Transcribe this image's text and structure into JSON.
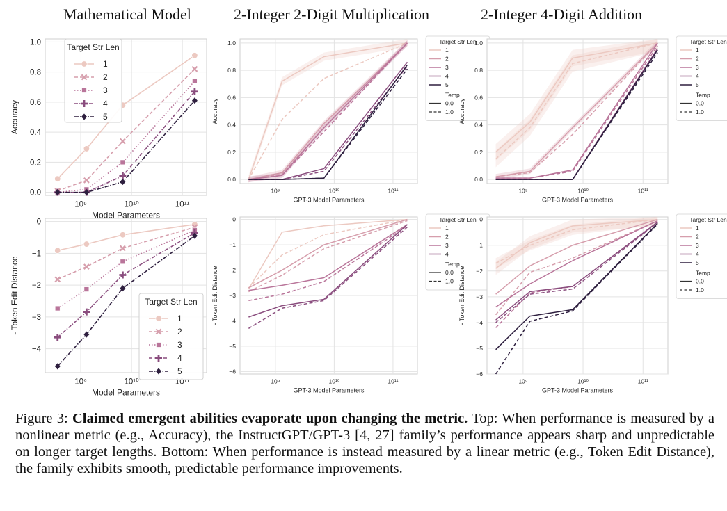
{
  "figure": {
    "column_titles": [
      "Mathematical Model",
      "2-Integer 2-Digit Multiplication",
      "2-Integer 4-Digit Addition"
    ],
    "caption": {
      "label": "Figure 3:",
      "bold": "Claimed emergent abilities evaporate upon changing the metric.",
      "rest": "Top: When performance is measured by a nonlinear metric (e.g., Accuracy), the InstructGPT/GPT-3 [4, 27] family’s performance appears sharp and unpredictable on longer target lengths. Bottom: When performance is instead measured by a linear metric (e.g., Token Edit Distance), the family exhibits smooth, predictable performance improvements."
    }
  },
  "colors": {
    "1": "#ecc9c1",
    "2": "#d69eac",
    "3": "#b9759a",
    "4": "#8a4d7e",
    "5": "#2e1f3f"
  },
  "chart_data": [
    {
      "id": "math-acc",
      "type": "line",
      "xlabel": "Model Parameters",
      "ylabel": "Accuracy",
      "xscale": "log",
      "xlim": [
        200000000.0,
        300000000000.0
      ],
      "ylim": [
        -0.02,
        1.02
      ],
      "yticks": [
        0.0,
        0.2,
        0.4,
        0.6,
        0.8,
        1.0
      ],
      "ytick_labels": [
        "0.0",
        "0.2",
        "0.4",
        "0.6",
        "0.8",
        "1.0"
      ],
      "xticks": [
        1000000000.0,
        10000000000.0,
        100000000000.0
      ],
      "xtick_labels": [
        "10⁹",
        "10¹⁰",
        "10¹¹"
      ],
      "x": [
        350000000.0,
        1300000000.0,
        6700000000.0,
        175000000000.0
      ],
      "legend": {
        "title": "Target Str Len",
        "position": "top-left",
        "entries": [
          "1",
          "2",
          "3",
          "4",
          "5"
        ]
      },
      "series": [
        {
          "name": "1",
          "values": [
            0.09,
            0.29,
            0.58,
            0.91
          ]
        },
        {
          "name": "2",
          "values": [
            0.01,
            0.08,
            0.34,
            0.82
          ]
        },
        {
          "name": "3",
          "values": [
            0.0,
            0.02,
            0.2,
            0.74
          ]
        },
        {
          "name": "4",
          "values": [
            0.0,
            0.0,
            0.11,
            0.67
          ]
        },
        {
          "name": "5",
          "values": [
            0.0,
            0.0,
            0.07,
            0.61
          ]
        }
      ]
    },
    {
      "id": "mult-acc",
      "type": "line",
      "xlabel": "GPT-3 Model Parameters",
      "ylabel": "Accuracy",
      "xscale": "log",
      "xlim": [
        250000000.0,
        260000000000.0
      ],
      "ylim": [
        -0.03,
        1.03
      ],
      "yticks": [
        0.0,
        0.2,
        0.4,
        0.6,
        0.8,
        1.0
      ],
      "ytick_labels": [
        "0.0",
        "0.2",
        "0.4",
        "0.6",
        "0.8",
        "1.0"
      ],
      "xticks": [
        1000000000.0,
        10000000000.0,
        100000000000.0
      ],
      "xtick_labels": [
        "10⁹",
        "10¹⁰",
        "10¹¹"
      ],
      "x": [
        350000000.0,
        1300000000.0,
        6700000000.0,
        175000000000.0
      ],
      "legend": {
        "title": "Target Str Len",
        "position": "right",
        "entries": [
          "1",
          "2",
          "3",
          "4",
          "5"
        ],
        "title2": "Temp",
        "entries2": [
          "0.0",
          "1.0"
        ]
      },
      "series": [
        {
          "name": "1",
          "temp": "0.0",
          "values": [
            0.0,
            0.72,
            0.9,
            1.0
          ],
          "band": 0.03
        },
        {
          "name": "1",
          "temp": "1.0",
          "values": [
            0.0,
            0.44,
            0.74,
            1.0
          ]
        },
        {
          "name": "2",
          "temp": "0.0",
          "values": [
            0.0,
            0.05,
            0.41,
            1.0
          ],
          "band": 0.02
        },
        {
          "name": "2",
          "temp": "1.0",
          "values": [
            0.0,
            0.04,
            0.38,
            1.0
          ]
        },
        {
          "name": "3",
          "temp": "0.0",
          "values": [
            0.0,
            0.03,
            0.38,
            1.0
          ],
          "band": 0.02
        },
        {
          "name": "3",
          "temp": "1.0",
          "values": [
            0.0,
            0.03,
            0.35,
            1.0
          ]
        },
        {
          "name": "4",
          "temp": "0.0",
          "values": [
            0.0,
            0.0,
            0.08,
            0.86
          ]
        },
        {
          "name": "4",
          "temp": "1.0",
          "values": [
            0.0,
            0.0,
            0.06,
            0.83
          ]
        },
        {
          "name": "5",
          "temp": "0.0",
          "values": [
            0.0,
            0.0,
            0.01,
            0.84
          ]
        },
        {
          "name": "5",
          "temp": "1.0",
          "values": [
            0.0,
            0.0,
            0.01,
            0.81
          ]
        }
      ]
    },
    {
      "id": "add-acc",
      "type": "line",
      "xlabel": "GPT-3 Model Parameters",
      "ylabel": "Accuracy",
      "xscale": "log",
      "xlim": [
        250000000.0,
        260000000000.0
      ],
      "ylim": [
        -0.03,
        1.03
      ],
      "yticks": [
        0.0,
        0.2,
        0.4,
        0.6,
        0.8,
        1.0
      ],
      "ytick_labels": [
        "0.0",
        "0.2",
        "0.4",
        "0.6",
        "0.8",
        "1.0"
      ],
      "xticks": [
        1000000000.0,
        10000000000.0,
        100000000000.0
      ],
      "xtick_labels": [
        "10⁹",
        "10¹⁰",
        "10¹¹"
      ],
      "x": [
        350000000.0,
        1300000000.0,
        6700000000.0,
        175000000000.0
      ],
      "legend": {
        "title": "Target Str Len",
        "position": "right",
        "entries": [
          "1",
          "2",
          "3",
          "4",
          "5"
        ],
        "title2": "Temp",
        "entries2": [
          "0.0",
          "1.0"
        ]
      },
      "series": [
        {
          "name": "1",
          "temp": "0.0",
          "values": [
            0.2,
            0.42,
            0.89,
            1.0
          ],
          "band": 0.06
        },
        {
          "name": "1",
          "temp": "1.0",
          "values": [
            0.15,
            0.38,
            0.85,
            1.0
          ],
          "band": 0.06
        },
        {
          "name": "2",
          "temp": "0.0",
          "values": [
            0.02,
            0.06,
            0.38,
            1.0
          ],
          "band": 0.02
        },
        {
          "name": "2",
          "temp": "1.0",
          "values": [
            0.02,
            0.05,
            0.33,
            1.0
          ]
        },
        {
          "name": "3",
          "temp": "0.0",
          "values": [
            0.01,
            0.01,
            0.07,
            1.0
          ]
        },
        {
          "name": "3",
          "temp": "1.0",
          "values": [
            0.01,
            0.01,
            0.06,
            0.98
          ]
        },
        {
          "name": "4",
          "temp": "0.0",
          "values": [
            0.0,
            0.0,
            0.0,
            0.96
          ]
        },
        {
          "name": "4",
          "temp": "1.0",
          "values": [
            0.0,
            0.0,
            0.0,
            0.95
          ]
        },
        {
          "name": "5",
          "temp": "0.0",
          "values": [
            0.0,
            0.0,
            0.0,
            0.95
          ]
        },
        {
          "name": "5",
          "temp": "1.0",
          "values": [
            0.0,
            0.0,
            0.0,
            0.93
          ]
        }
      ]
    },
    {
      "id": "math-ted",
      "type": "line",
      "xlabel": "Model Parameters",
      "ylabel": "- Token Edit Distance",
      "xscale": "log",
      "xlim": [
        200000000.0,
        300000000000.0
      ],
      "ylim": [
        -4.75,
        0.1
      ],
      "yticks": [
        0,
        -1,
        -2,
        -3,
        -4
      ],
      "ytick_labels": [
        "0",
        "−1",
        "−2",
        "−3",
        "−4"
      ],
      "xticks": [
        1000000000.0,
        10000000000.0,
        100000000000.0
      ],
      "xtick_labels": [
        "10⁹",
        "10¹⁰",
        "10¹¹"
      ],
      "x": [
        350000000.0,
        1300000000.0,
        6700000000.0,
        175000000000.0
      ],
      "legend": {
        "title": "Target Str Len",
        "position": "bottom-right",
        "entries": [
          "1",
          "2",
          "3",
          "4",
          "5"
        ]
      },
      "series": [
        {
          "name": "1",
          "values": [
            -0.91,
            -0.71,
            -0.42,
            -0.09
          ]
        },
        {
          "name": "2",
          "values": [
            -1.82,
            -1.42,
            -0.84,
            -0.18
          ]
        },
        {
          "name": "3",
          "values": [
            -2.73,
            -2.13,
            -1.26,
            -0.27
          ]
        },
        {
          "name": "4",
          "values": [
            -3.64,
            -2.84,
            -1.68,
            -0.36
          ]
        },
        {
          "name": "5",
          "values": [
            -4.55,
            -3.55,
            -2.1,
            -0.45
          ]
        }
      ]
    },
    {
      "id": "mult-ted",
      "type": "line",
      "xlabel": "GPT-3 Model Parameters",
      "ylabel": "- Token Edit Distance",
      "xscale": "log",
      "xlim": [
        250000000.0,
        260000000000.0
      ],
      "ylim": [
        -6.1,
        0.1
      ],
      "yticks": [
        0,
        -1,
        -2,
        -3,
        -4,
        -5,
        -6
      ],
      "ytick_labels": [
        "0",
        "−1",
        "−2",
        "−3",
        "−4",
        "−5",
        "−6"
      ],
      "xticks": [
        1000000000.0,
        10000000000.0,
        100000000000.0
      ],
      "xtick_labels": [
        "10⁹",
        "10¹⁰",
        "10¹¹"
      ],
      "x": [
        350000000.0,
        1300000000.0,
        6700000000.0,
        175000000000.0
      ],
      "legend": {
        "title": "Target Str Len",
        "position": "right",
        "entries": [
          "1",
          "2",
          "3",
          "4"
        ],
        "title2": "Temp",
        "entries2": [
          "0.0",
          "1.0"
        ]
      },
      "series": [
        {
          "name": "1",
          "temp": "0.0",
          "values": [
            -2.75,
            -0.5,
            -0.25,
            0.0
          ]
        },
        {
          "name": "1",
          "temp": "1.0",
          "values": [
            -2.7,
            -1.4,
            -0.6,
            0.0
          ]
        },
        {
          "name": "2",
          "temp": "0.0",
          "values": [
            -2.7,
            -2.0,
            -1.0,
            0.0
          ]
        },
        {
          "name": "2",
          "temp": "1.0",
          "values": [
            -2.85,
            -2.2,
            -1.15,
            -0.05
          ]
        },
        {
          "name": "3",
          "temp": "0.0",
          "values": [
            -2.8,
            -2.6,
            -2.3,
            -0.2
          ]
        },
        {
          "name": "3",
          "temp": "1.0",
          "values": [
            -3.2,
            -2.95,
            -2.45,
            -0.25
          ]
        },
        {
          "name": "4",
          "temp": "0.0",
          "values": [
            -3.85,
            -3.4,
            -3.15,
            -0.2
          ]
        },
        {
          "name": "4",
          "temp": "1.0",
          "values": [
            -4.3,
            -3.5,
            -3.2,
            -0.3
          ]
        }
      ]
    },
    {
      "id": "add-ted",
      "type": "line",
      "xlabel": "GPT-3 Model Parameters",
      "ylabel": "- Token Edit Distance",
      "xscale": "log",
      "xlim": [
        250000000.0,
        260000000000.0
      ],
      "ylim": [
        -6.0,
        0.1
      ],
      "yticks": [
        0,
        -1,
        -2,
        -3,
        -4,
        -5,
        -6
      ],
      "ytick_labels": [
        "0",
        "−1",
        "−2",
        "−3",
        "−4",
        "−5",
        "−6"
      ],
      "xticks": [
        1000000000.0,
        10000000000.0,
        100000000000.0
      ],
      "xtick_labels": [
        "10⁹",
        "10¹⁰",
        "10¹¹"
      ],
      "x": [
        350000000.0,
        1300000000.0,
        6700000000.0,
        175000000000.0
      ],
      "legend": {
        "title": "Target Str Len",
        "position": "right",
        "entries": [
          "1",
          "2",
          "3",
          "4",
          "5"
        ],
        "title2": "Temp",
        "entries2": [
          "0.0",
          "1.0"
        ]
      },
      "series": [
        {
          "name": "1",
          "temp": "0.0",
          "values": [
            -1.9,
            -0.9,
            -0.25,
            0.0
          ],
          "band": 0.25
        },
        {
          "name": "1",
          "temp": "1.0",
          "values": [
            -1.7,
            -1.0,
            -0.4,
            0.0
          ],
          "band": 0.2
        },
        {
          "name": "2",
          "temp": "0.0",
          "values": [
            -2.9,
            -1.8,
            -1.0,
            0.0
          ]
        },
        {
          "name": "2",
          "temp": "1.0",
          "values": [
            -3.7,
            -2.05,
            -1.5,
            -0.05
          ]
        },
        {
          "name": "3",
          "temp": "0.0",
          "values": [
            -3.4,
            -2.5,
            -1.6,
            -0.05
          ]
        },
        {
          "name": "3",
          "temp": "1.0",
          "values": [
            -4.2,
            -2.85,
            -2.6,
            -0.1
          ]
        },
        {
          "name": "4",
          "temp": "0.0",
          "values": [
            -3.9,
            -2.8,
            -2.6,
            -0.1
          ]
        },
        {
          "name": "4",
          "temp": "1.0",
          "values": [
            -4.0,
            -2.9,
            -2.7,
            -0.12
          ]
        },
        {
          "name": "5",
          "temp": "0.0",
          "values": [
            -5.05,
            -3.75,
            -3.5,
            -0.15
          ]
        },
        {
          "name": "5",
          "temp": "1.0",
          "values": [
            -6.0,
            -3.95,
            -3.55,
            -0.18
          ]
        }
      ]
    }
  ]
}
